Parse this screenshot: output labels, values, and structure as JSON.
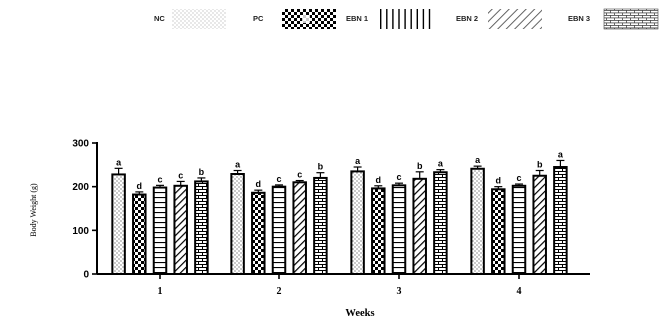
{
  "chart_data": {
    "type": "bar",
    "title": "",
    "xlabel": "Weeks",
    "ylabel": "Body Weight (g)",
    "ylim": [
      0,
      300
    ],
    "yticks": [
      0,
      100,
      200,
      300
    ],
    "categories": [
      "1",
      "2",
      "3",
      "4"
    ],
    "legend_position": "top",
    "series": [
      {
        "name": "NC",
        "pattern": "dots",
        "values": [
          228,
          229,
          235,
          241
        ],
        "errors": [
          14,
          8,
          10,
          6
        ],
        "letters": [
          "a",
          "a",
          "a",
          "a"
        ]
      },
      {
        "name": "PC",
        "pattern": "checker",
        "values": [
          182,
          186,
          196,
          194
        ],
        "errors": [
          6,
          6,
          6,
          6
        ],
        "letters": [
          "d",
          "d",
          "d",
          "d"
        ]
      },
      {
        "name": "EBN 1",
        "pattern": "vertical",
        "values": [
          198,
          200,
          203,
          202
        ],
        "errors": [
          5,
          4,
          5,
          4
        ],
        "letters": [
          "c",
          "c",
          "c",
          "c"
        ]
      },
      {
        "name": "EBN 2",
        "pattern": "diagonal",
        "values": [
          202,
          210,
          218,
          225
        ],
        "errors": [
          10,
          4,
          16,
          12
        ],
        "letters": [
          "c",
          "c",
          "b",
          "b"
        ]
      },
      {
        "name": "EBN 3",
        "pattern": "brick",
        "values": [
          212,
          220,
          233,
          245
        ],
        "errors": [
          8,
          12,
          6,
          15
        ],
        "letters": [
          "b",
          "b",
          "a",
          "a"
        ]
      }
    ]
  }
}
